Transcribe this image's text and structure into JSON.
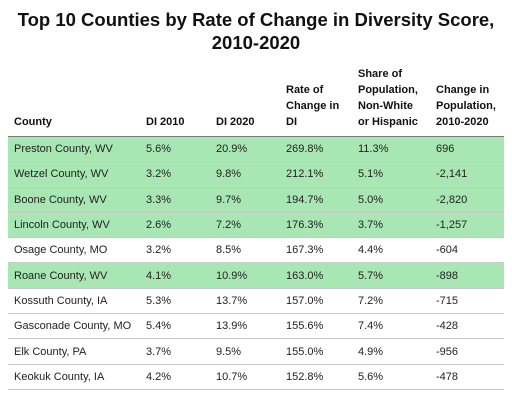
{
  "title_lines": [
    "Top 10 Counties by Rate of Change in Diversity Score,",
    "2010-2020"
  ],
  "chart_data": {
    "type": "table",
    "title": "Top 10 Counties by Rate of Change in Diversity Score, 2010-2020",
    "columns": [
      "County",
      "DI 2010",
      "DI 2020",
      "Rate of\nChange in\nDI",
      "Share of\nPopulation,\nNon-White\nor Hispanic",
      "Change in\nPopulation,\n2010-2020"
    ],
    "rows": [
      [
        "Preston County, WV",
        "5.6%",
        "20.9%",
        "269.8%",
        "11.3%",
        "696"
      ],
      [
        "Wetzel County, WV",
        "3.2%",
        "9.8%",
        "212.1%",
        "5.1%",
        "-2,141"
      ],
      [
        "Boone County, WV",
        "3.3%",
        "9.7%",
        "194.7%",
        "5.0%",
        "-2,820"
      ],
      [
        "Lincoln County, WV",
        "2.6%",
        "7.2%",
        "176.3%",
        "3.7%",
        "-1,257"
      ],
      [
        "Osage County, MO",
        "3.2%",
        "8.5%",
        "167.3%",
        "4.4%",
        "-604"
      ],
      [
        "Roane County, WV",
        "4.1%",
        "10.9%",
        "163.0%",
        "5.7%",
        "-898"
      ],
      [
        "Kossuth County, IA",
        "5.3%",
        "13.7%",
        "157.0%",
        "7.2%",
        "-715"
      ],
      [
        "Gasconade County, MO",
        "5.4%",
        "13.9%",
        "155.6%",
        "7.4%",
        "-428"
      ],
      [
        "Elk County, PA",
        "3.7%",
        "9.5%",
        "155.0%",
        "4.9%",
        "-956"
      ],
      [
        "Keokuk County, IA",
        "4.2%",
        "10.7%",
        "152.8%",
        "5.6%",
        "-478"
      ]
    ],
    "highlighted_rows": [
      0,
      1,
      2,
      3,
      5
    ],
    "colors": {
      "highlight": "#a8e6b4",
      "plain": "#ffffff"
    }
  }
}
